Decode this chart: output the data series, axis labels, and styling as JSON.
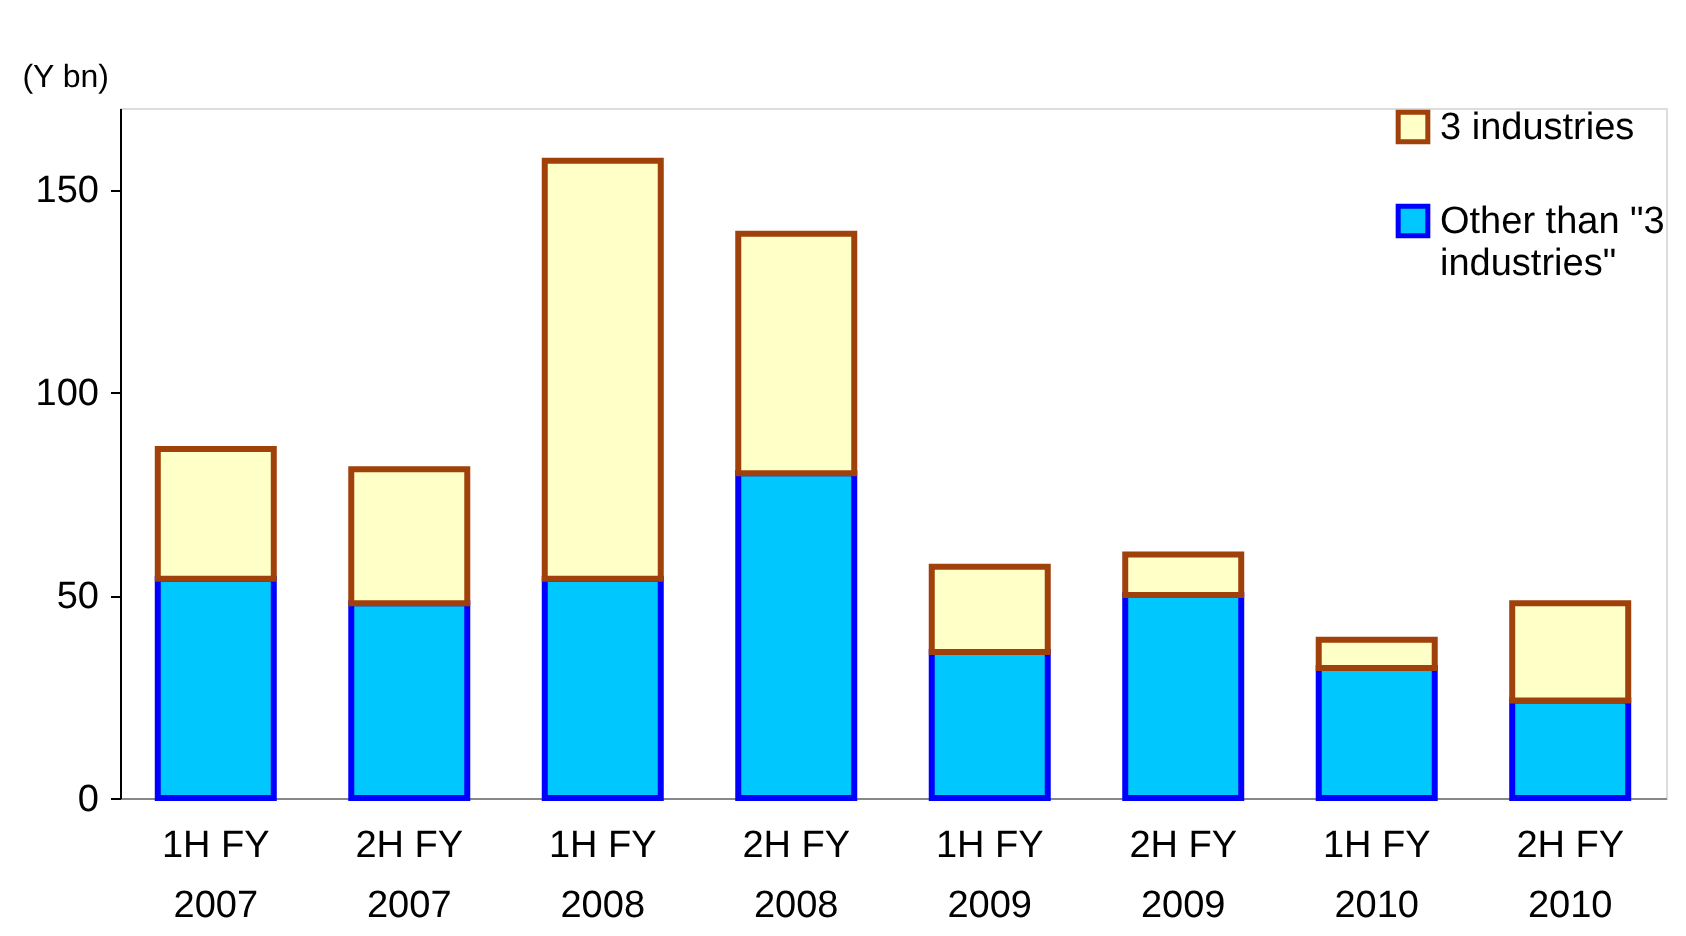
{
  "chart_data": {
    "type": "bar",
    "stacked": true,
    "ylabel": "(Y bn)",
    "categories": [
      "1H FY 2007",
      "2H FY 2007",
      "1H FY 2008",
      "2H FY 2008",
      "1H FY 2009",
      "2H FY 2009",
      "1H FY 2010",
      "2H FY 2010"
    ],
    "series": [
      {
        "name": "Other than \"3 industries\"",
        "color": "#00c8ff",
        "values": [
          54,
          48,
          54,
          80,
          36,
          50,
          32,
          24
        ]
      },
      {
        "name": "3 industries",
        "color": "#ffffc8",
        "values": [
          32,
          33,
          103,
          59,
          21,
          10,
          7,
          24
        ]
      }
    ],
    "ylim": [
      0,
      170
    ],
    "yticks": [
      0,
      50,
      100,
      150
    ],
    "grid": false,
    "legend": "top right"
  }
}
